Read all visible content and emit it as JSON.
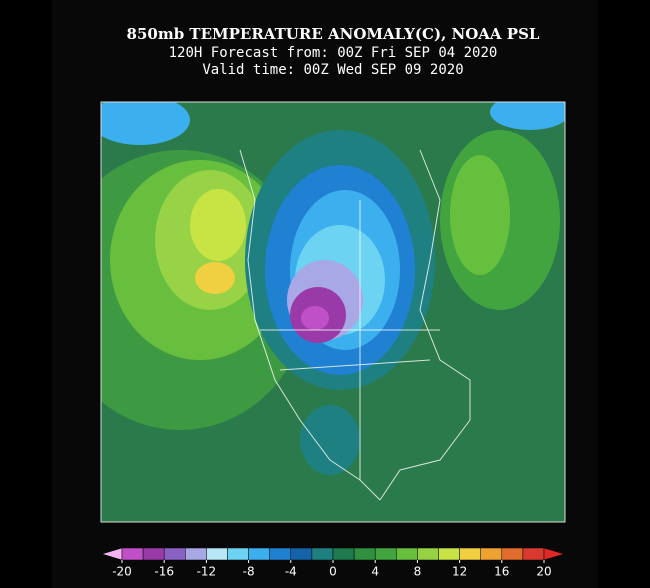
{
  "header": {
    "title": "850mb TEMPERATURE ANOMALY(C), NOAA PSL",
    "forecast": "120H Forecast from: 00Z Fri SEP 04 2020",
    "valid": "Valid time: 00Z Wed SEP 09 2020"
  },
  "colorbar": {
    "lim": [
      -20,
      20
    ],
    "ticks": [
      -20,
      -16,
      -12,
      -8,
      -4,
      0,
      4,
      8,
      12,
      16,
      20
    ],
    "under_color": "#f2b4f2",
    "over_color": "#e02828",
    "colors": [
      "#c050c8",
      "#9a3aa8",
      "#8a62c4",
      "#a8a8e6",
      "#b8e6f4",
      "#6cd4f2",
      "#3cb0ee",
      "#2080d2",
      "#1462a8",
      "#1e8080",
      "#1f7a4e",
      "#2f9040",
      "#42a43e",
      "#66c03e",
      "#96d244",
      "#c8e444",
      "#f0d040",
      "#eea232",
      "#e06c2e",
      "#d83a30"
    ]
  }
}
